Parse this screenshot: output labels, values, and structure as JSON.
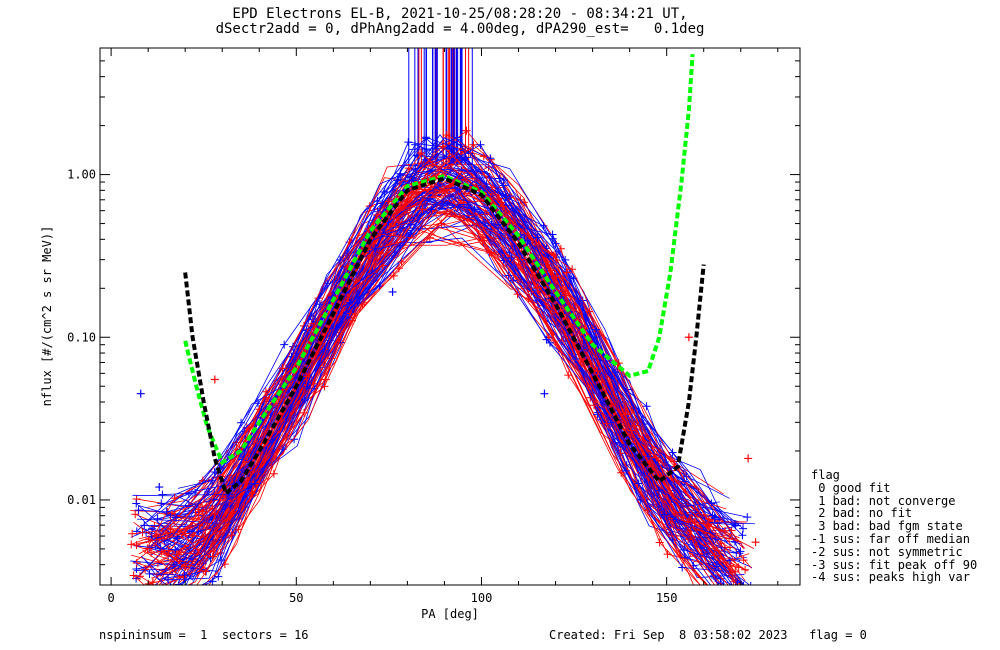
{
  "header": {
    "title": "EPD Electrons EL-B, 2021-10-25/08:28:20 - 08:34:21 UT,",
    "subtitle": "dSectr2add = 0, dPhAng2add = 4.00deg, dPA290_est=   0.1deg"
  },
  "legend": {
    "title": "flag",
    "items": [
      " 0 good fit",
      " 1 bad: not converge",
      " 2 bad: no fit",
      " 3 bad: bad fgm state",
      "-1 sus: far off median",
      "-2 sus: not symmetric",
      "-3 sus: fit peak off 90",
      "-4 sus: peaks high var"
    ]
  },
  "footer": {
    "left": "nspininsum =  1  sectors = 16",
    "right": "Created: Fri Sep  8 03:58:02 2023   flag = 0"
  },
  "chart_data": {
    "type": "scatter",
    "xlabel": "PA [deg]",
    "ylabel": "nflux [#/(cm^2 s sr MeV)]",
    "xlim": [
      -3,
      186
    ],
    "ylim": [
      0.003,
      6.0
    ],
    "y_scale": "log",
    "x_ticks": [
      0,
      50,
      100,
      150
    ],
    "y_ticks": [
      {
        "value": 0.01,
        "label": "0.01"
      },
      {
        "value": 0.1,
        "label": "0.10"
      },
      {
        "value": 1.0,
        "label": "1.00"
      }
    ],
    "colors": {
      "series_a": "#ff0000",
      "series_b": "#0000ff",
      "fit_green": "#00ff00",
      "fit_black": "#000000"
    },
    "envelope": [
      {
        "x": 20,
        "y": 0.005
      },
      {
        "x": 30,
        "y": 0.008
      },
      {
        "x": 40,
        "y": 0.02
      },
      {
        "x": 50,
        "y": 0.05
      },
      {
        "x": 60,
        "y": 0.13
      },
      {
        "x": 70,
        "y": 0.35
      },
      {
        "x": 80,
        "y": 0.7
      },
      {
        "x": 90,
        "y": 0.9
      },
      {
        "x": 95,
        "y": 0.88
      },
      {
        "x": 100,
        "y": 0.7
      },
      {
        "x": 110,
        "y": 0.4
      },
      {
        "x": 120,
        "y": 0.18
      },
      {
        "x": 130,
        "y": 0.07
      },
      {
        "x": 140,
        "y": 0.025
      },
      {
        "x": 150,
        "y": 0.01
      },
      {
        "x": 160,
        "y": 0.006
      },
      {
        "x": 170,
        "y": 0.004
      }
    ],
    "outliers": [
      {
        "x": 8,
        "y": 0.045,
        "series": "b"
      },
      {
        "x": 76,
        "y": 0.19,
        "series": "b"
      },
      {
        "x": 117,
        "y": 0.045,
        "series": "b"
      },
      {
        "x": 123,
        "y": 0.25,
        "series": "a"
      },
      {
        "x": 156,
        "y": 0.1,
        "series": "a"
      },
      {
        "x": 172,
        "y": 0.018,
        "series": "a"
      },
      {
        "x": 174,
        "y": 0.0055,
        "series": "a"
      },
      {
        "x": 13,
        "y": 0.012,
        "series": "b"
      },
      {
        "x": 28,
        "y": 0.055,
        "series": "a"
      },
      {
        "x": 84,
        "y": 0.9,
        "series": "a"
      }
    ],
    "green_fit": [
      {
        "x": 20,
        "y": 0.095
      },
      {
        "x": 23,
        "y": 0.05
      },
      {
        "x": 26,
        "y": 0.028
      },
      {
        "x": 30,
        "y": 0.017
      },
      {
        "x": 35,
        "y": 0.02
      },
      {
        "x": 40,
        "y": 0.03
      },
      {
        "x": 50,
        "y": 0.065
      },
      {
        "x": 60,
        "y": 0.17
      },
      {
        "x": 70,
        "y": 0.45
      },
      {
        "x": 80,
        "y": 0.85
      },
      {
        "x": 90,
        "y": 0.98
      },
      {
        "x": 100,
        "y": 0.78
      },
      {
        "x": 110,
        "y": 0.42
      },
      {
        "x": 120,
        "y": 0.19
      },
      {
        "x": 130,
        "y": 0.09
      },
      {
        "x": 140,
        "y": 0.058
      },
      {
        "x": 145,
        "y": 0.062
      },
      {
        "x": 148,
        "y": 0.1
      },
      {
        "x": 151,
        "y": 0.25
      },
      {
        "x": 154,
        "y": 0.9
      },
      {
        "x": 156,
        "y": 2.5
      },
      {
        "x": 157,
        "y": 5.5
      }
    ],
    "black_fit": [
      {
        "x": 20,
        "y": 0.25
      },
      {
        "x": 22,
        "y": 0.1
      },
      {
        "x": 25,
        "y": 0.04
      },
      {
        "x": 28,
        "y": 0.018
      },
      {
        "x": 31,
        "y": 0.011
      },
      {
        "x": 35,
        "y": 0.013
      },
      {
        "x": 40,
        "y": 0.02
      },
      {
        "x": 50,
        "y": 0.05
      },
      {
        "x": 60,
        "y": 0.14
      },
      {
        "x": 70,
        "y": 0.4
      },
      {
        "x": 80,
        "y": 0.8
      },
      {
        "x": 90,
        "y": 0.95
      },
      {
        "x": 100,
        "y": 0.75
      },
      {
        "x": 110,
        "y": 0.38
      },
      {
        "x": 120,
        "y": 0.16
      },
      {
        "x": 130,
        "y": 0.06
      },
      {
        "x": 140,
        "y": 0.022
      },
      {
        "x": 148,
        "y": 0.013
      },
      {
        "x": 153,
        "y": 0.016
      },
      {
        "x": 156,
        "y": 0.04
      },
      {
        "x": 158,
        "y": 0.1
      },
      {
        "x": 160,
        "y": 0.28
      }
    ],
    "vertical_marker_range": [
      80,
      98
    ]
  }
}
